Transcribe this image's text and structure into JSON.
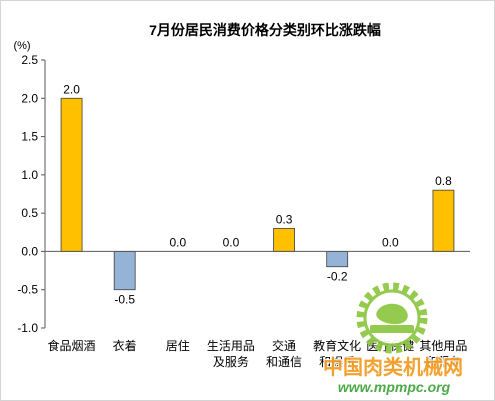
{
  "chart_data": {
    "type": "bar",
    "title": "7月份居民消费价格分类别环比涨跌幅",
    "xlabel": "",
    "ylabel": "(%)",
    "categories": [
      "食品烟酒",
      "衣着",
      "居住",
      "生活用品及服务",
      "交通和通信",
      "教育文化和娱乐",
      "医疗保健",
      "其他用品和服务"
    ],
    "values": [
      2.0,
      -0.5,
      0.0,
      0.0,
      0.3,
      -0.2,
      0.0,
      0.8
    ],
    "ylim": [
      -1.0,
      2.5
    ],
    "yticks": [
      -1.0,
      -0.5,
      0.0,
      0.5,
      1.0,
      1.5,
      2.0,
      2.5
    ],
    "grid": false,
    "colors": {
      "positive": "#FFC000",
      "negative": "#95B3D7",
      "outline": "#404040",
      "axis": "#595959"
    }
  },
  "watermark": {
    "logo_icon": "gear-logo-icon",
    "site_name": "中国肉类机械网",
    "site_url": "www.mpmpc.org"
  }
}
